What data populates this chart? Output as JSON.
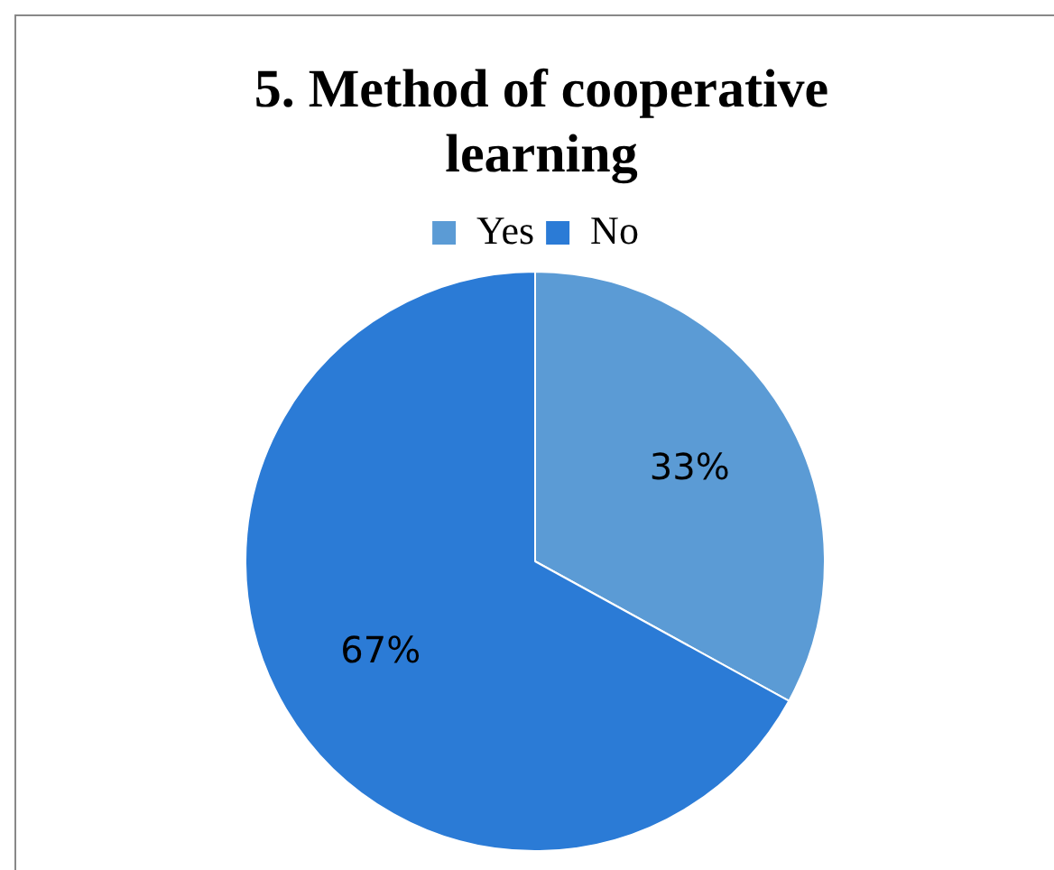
{
  "chart_data": {
    "type": "pie",
    "title": "5. Method of cooperative learning",
    "categories": [
      "Yes",
      "No"
    ],
    "values": [
      33,
      67
    ],
    "colors": [
      "#5b9bd5",
      "#2b7bd6"
    ],
    "value_labels": [
      "33%",
      "67%"
    ],
    "legend": "top"
  }
}
